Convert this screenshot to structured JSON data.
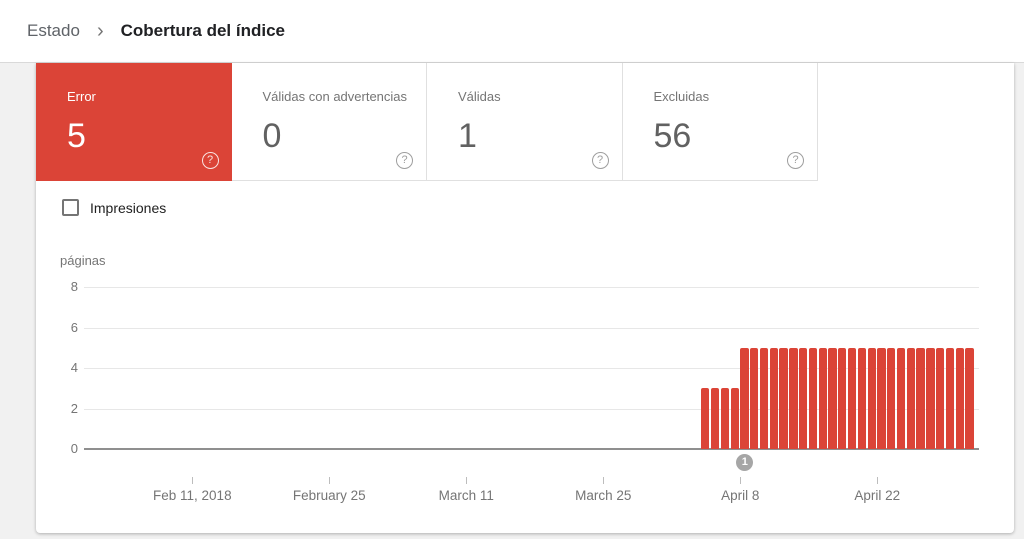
{
  "breadcrumb": {
    "parent": "Estado",
    "separator": "›",
    "current": "Cobertura del índice"
  },
  "icons": {
    "help": "?"
  },
  "summary_cards": [
    {
      "label": "Error",
      "value": "5",
      "accent": "#db4437",
      "selected": true
    },
    {
      "label": "Válidas con advertencias",
      "value": "0",
      "selected": false
    },
    {
      "label": "Válidas",
      "value": "1",
      "selected": false
    },
    {
      "label": "Excluidas",
      "value": "56",
      "selected": false
    }
  ],
  "impressions_toggle": {
    "label": "Impresiones",
    "checked": false
  },
  "chart_data": {
    "type": "bar",
    "title": "",
    "ylabel": "páginas",
    "ylim": [
      0,
      8
    ],
    "yticks": [
      0,
      2,
      4,
      6,
      8
    ],
    "grid": true,
    "xtick_labels": [
      "Feb 11, 2018",
      "February 25",
      "March 11",
      "March 25",
      "April 8",
      "April 22"
    ],
    "xtick_day_offsets_from_april8": [
      -56,
      -42,
      -28,
      -14,
      0,
      14
    ],
    "series": [
      {
        "name": "Error",
        "color": "#db4437",
        "start_offset_days_before_april8": 4,
        "values": [
          3,
          3,
          3,
          3,
          5,
          5,
          5,
          5,
          5,
          5,
          5,
          5,
          5,
          5,
          5,
          5,
          5,
          5,
          5,
          5,
          5,
          5,
          5,
          5,
          5,
          5,
          5,
          5
        ]
      }
    ],
    "annotations": [
      {
        "label": "1",
        "x_label": "April 8"
      }
    ]
  }
}
